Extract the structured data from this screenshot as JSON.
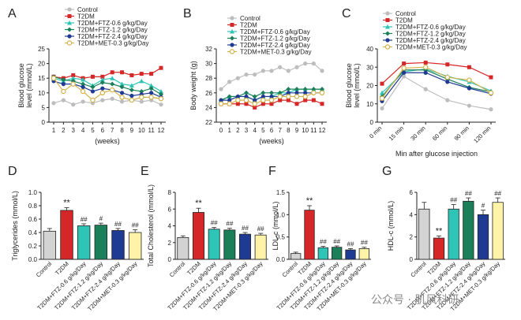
{
  "watermark": "公众号 · 肌风科研",
  "chart_data": [
    {
      "panel": "A",
      "type": "line",
      "ylabel": [
        "Blood glucose",
        "level (mmol/L)"
      ],
      "xlabel": "(weeks)",
      "categories": [
        "1",
        "2",
        "3",
        "4",
        "5",
        "6",
        "7",
        "8",
        "9",
        "10",
        "11",
        "12"
      ],
      "ylim": [
        0,
        25
      ],
      "yticks": [
        0,
        5,
        10,
        15,
        20,
        25
      ],
      "legend": "top-left",
      "series": [
        {
          "name": "Control",
          "color": "#bdbdbd",
          "marker": "circle",
          "values": [
            6.5,
            7.5,
            6.0,
            7.0,
            6.5,
            7.5,
            8.0,
            7.0,
            7.5,
            7.0,
            7.5,
            6.0
          ]
        },
        {
          "name": "T2DM",
          "color": "#d62728",
          "marker": "square",
          "values": [
            15.5,
            15.0,
            16.0,
            15.0,
            15.5,
            15.5,
            17.0,
            17.0,
            16.0,
            16.5,
            16.5,
            18.5
          ]
        },
        {
          "name": "T2DM+FTZ-0.6 g/kg/Day",
          "color": "#2ec4b6",
          "marker": "triangle",
          "values": [
            15.0,
            14.0,
            15.0,
            14.5,
            12.5,
            14.5,
            15.0,
            13.0,
            12.5,
            14.0,
            12.5,
            10.5
          ]
        },
        {
          "name": "T2DM+FTZ-1.2 g/kg/Day",
          "color": "#1b7f5a",
          "marker": "diamond",
          "values": [
            15.5,
            14.5,
            14.0,
            13.0,
            12.0,
            13.5,
            13.0,
            12.0,
            11.0,
            10.5,
            11.5,
            9.5
          ]
        },
        {
          "name": "T2DM+FTZ-2.4 g/kg/Day",
          "color": "#1f3a93",
          "marker": "circle",
          "values": [
            14.0,
            13.0,
            13.0,
            12.0,
            10.5,
            11.5,
            11.0,
            10.0,
            9.0,
            9.5,
            10.0,
            8.5
          ]
        },
        {
          "name": "T2DM+MET-0.3 g/kg/Day",
          "color": "#d4b24c",
          "marker": "hollow",
          "values": [
            15.0,
            10.5,
            13.0,
            10.5,
            7.5,
            10.0,
            11.0,
            8.5,
            7.5,
            8.5,
            8.5,
            8.0
          ]
        }
      ]
    },
    {
      "panel": "B",
      "type": "line",
      "ylabel": [
        "Body weight (g)"
      ],
      "xlabel": "(weeks)",
      "categories": [
        "0",
        "1",
        "2",
        "3",
        "4",
        "5",
        "6",
        "7",
        "8",
        "9",
        "10",
        "11",
        "12"
      ],
      "ylim": [
        22,
        32
      ],
      "yticks": [
        22,
        24,
        26,
        28,
        30,
        32
      ],
      "legend": "top",
      "series": [
        {
          "name": "Control",
          "color": "#bdbdbd",
          "marker": "circle",
          "values": [
            26.5,
            27.5,
            28.0,
            28.5,
            28.5,
            29.0,
            29.0,
            29.5,
            29.0,
            29.5,
            30.0,
            30.0,
            29.0
          ]
        },
        {
          "name": "T2DM",
          "color": "#d62728",
          "marker": "square",
          "values": [
            24.5,
            24.5,
            24.5,
            24.5,
            24.0,
            24.5,
            24.5,
            25.0,
            25.0,
            24.5,
            25.0,
            25.0,
            24.5
          ]
        },
        {
          "name": "T2DM+FTZ-0.6 g/kg/Day",
          "color": "#2ec4b6",
          "marker": "triangle",
          "values": [
            25.0,
            25.5,
            25.5,
            25.5,
            25.0,
            25.5,
            25.5,
            26.0,
            26.0,
            26.5,
            26.5,
            26.5,
            26.5
          ]
        },
        {
          "name": "T2DM+FTZ-1.2 g/kg/Day",
          "color": "#1b7f5a",
          "marker": "diamond",
          "values": [
            25.0,
            25.5,
            25.5,
            26.0,
            25.5,
            26.0,
            26.0,
            26.0,
            26.5,
            26.5,
            26.5,
            26.5,
            26.5
          ]
        },
        {
          "name": "T2DM+FTZ-2.4 g/kg/Day",
          "color": "#1f3a93",
          "marker": "circle",
          "values": [
            25.0,
            25.0,
            25.5,
            25.5,
            25.0,
            25.5,
            25.5,
            25.5,
            26.0,
            26.0,
            26.0,
            26.0,
            26.0
          ]
        },
        {
          "name": "T2DM+MET-0.3 g/kg/Day",
          "color": "#d4b24c",
          "marker": "hollow",
          "values": [
            24.5,
            24.5,
            25.0,
            25.0,
            24.5,
            25.0,
            25.0,
            25.5,
            25.5,
            25.5,
            25.5,
            26.0,
            26.0
          ]
        }
      ]
    },
    {
      "panel": "C",
      "type": "line",
      "ylabel": [
        "Blood glucose",
        "level (mmol/L)"
      ],
      "xlabel": "Min after glucose injection",
      "categories": [
        "0 min",
        "15 min",
        "30 min",
        "60 min",
        "90 min",
        "120 min"
      ],
      "ylim": [
        0,
        40
      ],
      "yticks": [
        0,
        10,
        20,
        30,
        40
      ],
      "legend": "top",
      "series": [
        {
          "name": "Control",
          "color": "#bdbdbd",
          "marker": "circle",
          "values": [
            7.5,
            25.0,
            18.0,
            12.0,
            9.0,
            7.0
          ]
        },
        {
          "name": "T2DM",
          "color": "#d62728",
          "marker": "square",
          "values": [
            21.0,
            32.0,
            32.5,
            31.5,
            30.0,
            24.5
          ]
        },
        {
          "name": "T2DM+FTZ-0.6 g/kg/Day",
          "color": "#2ec4b6",
          "marker": "triangle",
          "values": [
            16.0,
            27.5,
            29.0,
            25.0,
            22.0,
            17.0
          ]
        },
        {
          "name": "T2DM+FTZ-1.2 g/kg/Day",
          "color": "#1b7f5a",
          "marker": "diamond",
          "values": [
            14.0,
            28.5,
            28.5,
            23.5,
            19.0,
            16.5
          ]
        },
        {
          "name": "T2DM+FTZ-2.4 g/kg/Day",
          "color": "#1f3a93",
          "marker": "circle",
          "values": [
            11.5,
            27.0,
            27.0,
            22.0,
            18.5,
            15.5
          ]
        },
        {
          "name": "T2DM+MET-0.3 g/kg/Day",
          "color": "#d4b24c",
          "marker": "hollow",
          "values": [
            13.0,
            29.5,
            30.0,
            24.5,
            23.0,
            16.0
          ]
        }
      ]
    },
    {
      "panel": "D",
      "type": "bar",
      "ylabel": "Triglycerides (mmol/L)",
      "categories": [
        "Control",
        "T2DM",
        "T2DM+FTZ-0.6 g/kg/Day",
        "T2DM+FTZ-1.2 g/kg/Day",
        "T2DM+FTZ-2.4 g/kg/Day",
        "T2DM+MET-0.3 g/kg/Day"
      ],
      "colors": [
        "#d3d3d3",
        "#d62728",
        "#2ec4b6",
        "#1b7f5a",
        "#1f3a93",
        "#fff3a8"
      ],
      "values": [
        0.42,
        0.73,
        0.5,
        0.51,
        0.43,
        0.4
      ],
      "errors": [
        0.04,
        0.04,
        0.03,
        0.03,
        0.03,
        0.04
      ],
      "annotations": [
        "",
        "**",
        "##",
        "#",
        "##",
        "##"
      ],
      "ylim": [
        0,
        1.0
      ],
      "yticks": [
        0,
        0.2,
        0.4,
        0.6,
        0.8,
        1.0
      ],
      "ytick_labels": [
        "0.0",
        "0.2",
        "0.4",
        "0.6",
        "0.8",
        "1.0"
      ]
    },
    {
      "panel": "E",
      "type": "bar",
      "ylabel": "Total Cholesterol (mmol/L)",
      "categories": [
        "Control",
        "T2DM",
        "T2DM+FTZ-0.6 g/kg/Day",
        "T2DM+FTZ-1.2 g/kg/Day",
        "T2DM+FTZ-2.4 g/kg/Day",
        "T2DM+MET-0.3 g/kg/Day"
      ],
      "colors": [
        "#d3d3d3",
        "#d62728",
        "#2ec4b6",
        "#1b7f5a",
        "#1f3a93",
        "#fff3a8"
      ],
      "values": [
        2.6,
        5.6,
        3.6,
        3.5,
        3.0,
        2.9
      ],
      "errors": [
        0.2,
        0.5,
        0.2,
        0.2,
        0.2,
        0.2
      ],
      "annotations": [
        "",
        "**",
        "##",
        "##",
        "##",
        "##"
      ],
      "ylim": [
        0,
        8
      ],
      "yticks": [
        0,
        2,
        4,
        6,
        8
      ],
      "ytick_labels": [
        "0",
        "2",
        "4",
        "6",
        "8"
      ]
    },
    {
      "panel": "F",
      "type": "bar",
      "ylabel": "LDL-c (mmol/L)",
      "categories": [
        "Control",
        "T2DM",
        "T2DM+FTZ-0.6 g/kg/Day",
        "T2DM+FTZ-1.2 g/kg/Day",
        "T2DM+FTZ-2.4 g/kg/Day",
        "T2DM+MET-0.3 g/kg/Day"
      ],
      "colors": [
        "#d3d3d3",
        "#d62728",
        "#2ec4b6",
        "#1b7f5a",
        "#1f3a93",
        "#fff3a8"
      ],
      "values": [
        0.13,
        1.1,
        0.26,
        0.27,
        0.21,
        0.24
      ],
      "errors": [
        0.03,
        0.1,
        0.03,
        0.03,
        0.03,
        0.03
      ],
      "annotations": [
        "",
        "**",
        "##",
        "##",
        "##",
        "##"
      ],
      "ylim": [
        0,
        1.5
      ],
      "yticks": [
        0,
        0.5,
        1.0,
        1.5
      ],
      "ytick_labels": [
        "0.0",
        "0.5",
        "1.0",
        "1.5"
      ]
    },
    {
      "panel": "G",
      "type": "bar",
      "ylabel": "HDL-c (mmol/L)",
      "categories": [
        "Control",
        "T2DM",
        "T2DM+FTZ-0.6 g/kg/Day",
        "T2DM+FTZ-1.2 g/kg/Day",
        "T2DM+FTZ-2.4 g/kg/Day",
        "T2DM+MET-0.3 g/kg/Day"
      ],
      "colors": [
        "#d3d3d3",
        "#d62728",
        "#2ec4b6",
        "#1b7f5a",
        "#1f3a93",
        "#fff3a8"
      ],
      "values": [
        4.5,
        1.9,
        4.5,
        5.2,
        4.0,
        5.1
      ],
      "errors": [
        0.6,
        0.2,
        0.4,
        0.3,
        0.4,
        0.4
      ],
      "annotations": [
        "",
        "**",
        "##",
        "##",
        "#",
        "##"
      ],
      "ylim": [
        0,
        6
      ],
      "yticks": [
        0,
        2,
        4,
        6
      ],
      "ytick_labels": [
        "0",
        "2",
        "4",
        "6"
      ]
    }
  ]
}
